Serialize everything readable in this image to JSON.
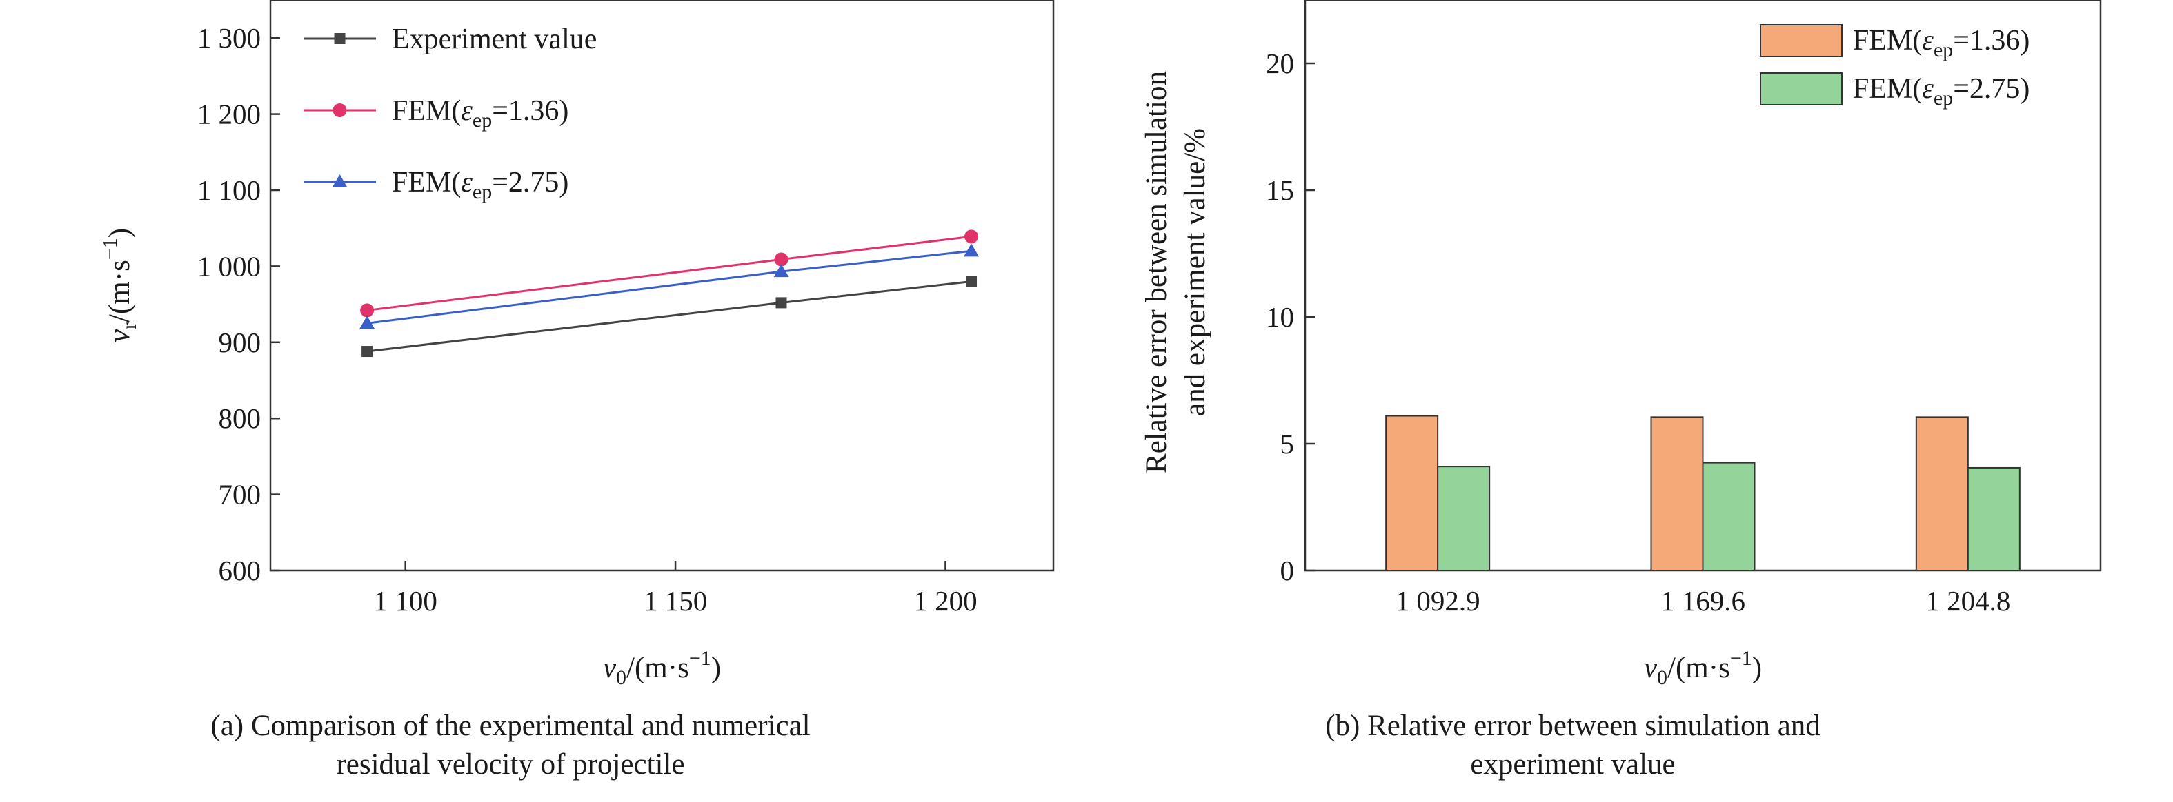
{
  "chart_data": [
    {
      "type": "line",
      "x": [
        1092.9,
        1169.6,
        1204.8
      ],
      "series": [
        {
          "name": "Experiment value",
          "values": [
            888,
            952,
            980
          ],
          "color": "#444444",
          "marker": "square"
        },
        {
          "name": "FEM(εep=1.36)",
          "values": [
            942,
            1009,
            1039
          ],
          "color": "#e0336a",
          "marker": "circle"
        },
        {
          "name": "FEM(εep=2.75)",
          "values": [
            925,
            993,
            1020
          ],
          "color": "#3a5fc8",
          "marker": "triangle"
        }
      ],
      "legend": [
        {
          "name_main": "Experiment value",
          "name_var": "",
          "name_sub": "",
          "name_suffix": ""
        },
        {
          "name_main": "FEM(",
          "name_var": "ε",
          "name_sub": "ep",
          "name_suffix": "=1.36)"
        },
        {
          "name_main": "FEM(",
          "name_var": "ε",
          "name_sub": "ep",
          "name_suffix": "=2.75)"
        }
      ],
      "xlim": [
        1075,
        1220
      ],
      "ylim": [
        600,
        1350
      ],
      "xticks": [
        1100,
        1150,
        1200
      ],
      "xtick_labels": [
        "1 100",
        "1 150",
        "1 200"
      ],
      "yticks": [
        600,
        700,
        800,
        900,
        1000,
        1100,
        1200,
        1300
      ],
      "ytick_labels": [
        "600",
        "700",
        "800",
        "900",
        "1 000",
        "1 100",
        "1 200",
        "1 300"
      ],
      "xlabel": {
        "var": "v",
        "sub": "0",
        "unit": "/(m·s",
        "sup": "−1",
        "close": ")"
      },
      "ylabel": {
        "var": "v",
        "sub": "r",
        "unit": "/(m·s",
        "sup": "−1",
        "close": ")"
      },
      "legend_position": "top-left",
      "caption": [
        "(a) Comparison of the experimental and numerical",
        "residual velocity of projectile"
      ]
    },
    {
      "type": "bar",
      "categories": [
        "1 092.9",
        "1 169.6",
        "1 204.8"
      ],
      "series": [
        {
          "name": "FEM(εep=1.36)",
          "values": [
            6.1,
            6.05,
            6.05
          ],
          "color": "#f5a978"
        },
        {
          "name": "FEM(εep=2.75)",
          "values": [
            4.1,
            4.25,
            4.05
          ],
          "color": "#94d49a"
        }
      ],
      "legend": [
        {
          "name_main": "FEM(",
          "name_var": "ε",
          "name_sub": "ep",
          "name_suffix": "=1.36)"
        },
        {
          "name_main": "FEM(",
          "name_var": "ε",
          "name_sub": "ep",
          "name_suffix": "=2.75)"
        }
      ],
      "ylim": [
        0,
        22.5
      ],
      "yticks": [
        0,
        5,
        10,
        15,
        20
      ],
      "ytick_labels": [
        "0",
        "5",
        "10",
        "15",
        "20"
      ],
      "xlabel": {
        "var": "v",
        "sub": "0",
        "unit": "/(m·s",
        "sup": "−1",
        "close": ")"
      },
      "ylabel_lines": [
        "Relative error between simulation",
        "and experiment value/%"
      ],
      "legend_position": "top-right",
      "caption": [
        "(b) Relative error between simulation and",
        "experiment value"
      ]
    }
  ]
}
